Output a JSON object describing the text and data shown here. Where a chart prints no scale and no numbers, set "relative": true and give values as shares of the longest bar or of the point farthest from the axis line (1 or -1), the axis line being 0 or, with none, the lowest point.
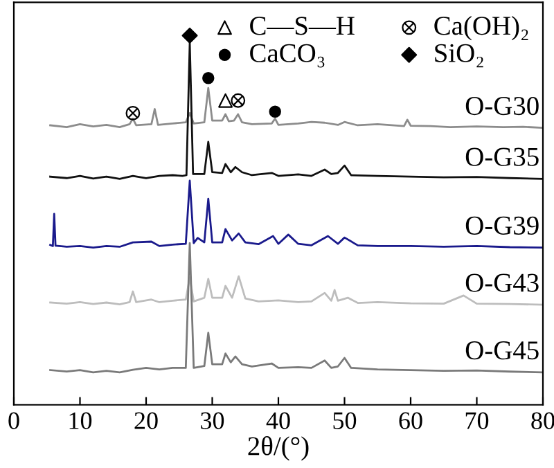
{
  "chart_data": {
    "type": "line",
    "relative": true,
    "xlabel": "2θ/(°)",
    "xlim": [
      0,
      80
    ],
    "xticks": [
      0,
      10,
      20,
      30,
      40,
      50,
      60,
      70,
      80
    ],
    "grid": false,
    "legend": "top right",
    "line_style": "solid",
    "series": [
      {
        "name": "O-G30",
        "color": "#8c8c8c",
        "x": [
          5.5,
          8,
          10,
          12,
          14,
          16,
          17.5,
          18,
          18.5,
          20.8,
          21.3,
          21.8,
          24,
          26,
          26.6,
          27.2,
          28.8,
          29.4,
          30,
          31.5,
          32,
          32.5,
          33.3,
          33.9,
          34.5,
          36,
          39,
          39.5,
          40,
          43,
          45,
          47,
          49,
          50,
          52,
          55,
          59,
          59.5,
          60,
          63,
          66,
          70,
          74,
          77,
          80
        ],
        "values": [
          0.757,
          0.752,
          0.76,
          0.754,
          0.758,
          0.752,
          0.76,
          0.775,
          0.757,
          0.76,
          0.801,
          0.758,
          0.762,
          0.765,
          0.79,
          0.762,
          0.765,
          0.858,
          0.77,
          0.77,
          0.787,
          0.768,
          0.77,
          0.787,
          0.765,
          0.76,
          0.762,
          0.775,
          0.758,
          0.762,
          0.766,
          0.764,
          0.758,
          0.766,
          0.757,
          0.76,
          0.755,
          0.772,
          0.756,
          0.755,
          0.752,
          0.754,
          0.752,
          0.753,
          0.75
        ]
      },
      {
        "name": "O-G35",
        "color": "#111111",
        "x": [
          5.5,
          8,
          10,
          12,
          14,
          16,
          18,
          20,
          22,
          24,
          25.5,
          26.1,
          26.6,
          27.1,
          28.8,
          29.4,
          30,
          31.5,
          32,
          32.8,
          33.5,
          34.5,
          36,
          39,
          40,
          43,
          45,
          47,
          48,
          49,
          50,
          51,
          55,
          60,
          65,
          70,
          75,
          80
        ],
        "values": [
          0.618,
          0.614,
          0.62,
          0.613,
          0.618,
          0.612,
          0.62,
          0.614,
          0.62,
          0.622,
          0.62,
          0.622,
          0.981,
          0.625,
          0.625,
          0.712,
          0.63,
          0.628,
          0.652,
          0.63,
          0.644,
          0.63,
          0.622,
          0.628,
          0.62,
          0.624,
          0.62,
          0.637,
          0.625,
          0.628,
          0.648,
          0.622,
          0.62,
          0.618,
          0.616,
          0.617,
          0.614,
          0.612
        ]
      },
      {
        "name": "O-G39",
        "color": "#1a1a8c",
        "x": [
          5.5,
          5.9,
          6.1,
          6.3,
          8,
          10,
          12,
          14,
          16,
          18,
          20.8,
          22,
          24,
          26,
          26.6,
          27.2,
          27.8,
          28.8,
          29.4,
          30,
          31.5,
          32,
          33,
          34,
          35,
          37,
          39.2,
          40,
          41.5,
          43,
          45,
          47.5,
          49,
          50,
          52,
          55,
          60,
          65,
          70,
          75,
          80
        ],
        "values": [
          0.433,
          0.43,
          0.517,
          0.431,
          0.428,
          0.43,
          0.426,
          0.43,
          0.428,
          0.44,
          0.442,
          0.43,
          0.434,
          0.436,
          0.607,
          0.438,
          0.452,
          0.44,
          0.558,
          0.44,
          0.44,
          0.476,
          0.445,
          0.464,
          0.44,
          0.435,
          0.457,
          0.436,
          0.461,
          0.436,
          0.432,
          0.457,
          0.436,
          0.453,
          0.432,
          0.43,
          0.43,
          0.428,
          0.43,
          0.427,
          0.426
        ]
      },
      {
        "name": "O-G43",
        "color": "#bdbdbd",
        "x": [
          5.5,
          8,
          10,
          12,
          14,
          16,
          17.5,
          18,
          18.5,
          20.8,
          22,
          24,
          26,
          26.6,
          27.2,
          28.8,
          29.4,
          30,
          31.5,
          32,
          33,
          34,
          35,
          37,
          40,
          43,
          45,
          47,
          48,
          48.5,
          49,
          50.5,
          52,
          55,
          60,
          65,
          68,
          70,
          75,
          80
        ],
        "values": [
          0.277,
          0.274,
          0.278,
          0.273,
          0.277,
          0.272,
          0.278,
          0.307,
          0.278,
          0.285,
          0.278,
          0.282,
          0.285,
          0.345,
          0.28,
          0.29,
          0.341,
          0.29,
          0.29,
          0.322,
          0.29,
          0.348,
          0.288,
          0.28,
          0.283,
          0.278,
          0.28,
          0.303,
          0.282,
          0.311,
          0.282,
          0.29,
          0.276,
          0.278,
          0.275,
          0.274,
          0.296,
          0.274,
          0.273,
          0.271
        ]
      },
      {
        "name": "O-G45",
        "color": "#7a7a7a",
        "x": [
          5.5,
          8,
          10,
          12,
          14,
          16,
          18,
          20,
          22,
          24,
          26,
          26.6,
          27.2,
          28.8,
          29.4,
          30,
          31.5,
          32,
          32.8,
          33.5,
          34.5,
          36,
          39,
          40,
          43,
          45,
          47,
          48,
          49,
          50,
          51,
          55,
          60,
          65,
          70,
          75,
          80
        ],
        "values": [
          0.094,
          0.09,
          0.094,
          0.088,
          0.092,
          0.088,
          0.095,
          0.1,
          0.096,
          0.1,
          0.1,
          0.438,
          0.1,
          0.105,
          0.195,
          0.11,
          0.11,
          0.139,
          0.115,
          0.131,
          0.11,
          0.104,
          0.112,
          0.1,
          0.102,
          0.1,
          0.12,
          0.1,
          0.104,
          0.127,
          0.1,
          0.096,
          0.094,
          0.092,
          0.093,
          0.09,
          0.088
        ]
      },
      {
        "name": "C—S—H",
        "type": "scatter",
        "marker": "triangle",
        "color": "#000000",
        "x": [
          32
        ],
        "values": [
          0.824
        ]
      },
      {
        "name": "CaCO₃",
        "type": "scatter",
        "marker": "circle",
        "color": "#000000",
        "x": [
          29.4,
          39.5
        ],
        "values": [
          0.885,
          0.794
        ]
      },
      {
        "name": "Ca(OH)₂",
        "type": "scatter",
        "marker": "cross",
        "color": "#000000",
        "x": [
          18,
          33.9
        ],
        "values": [
          0.79,
          0.824
        ]
      },
      {
        "name": "SiO₂",
        "type": "scatter",
        "marker": "diamond",
        "color": "#000000",
        "x": [
          26.6
        ],
        "values": [
          1.0
        ]
      }
    ]
  }
}
